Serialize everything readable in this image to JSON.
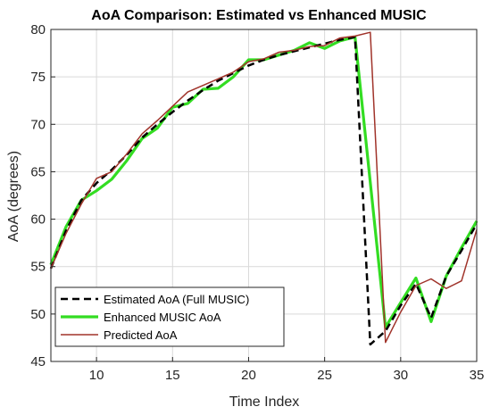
{
  "chart_data": {
    "type": "line",
    "title": "AoA Comparison: Estimated vs Enhanced MUSIC",
    "xlabel": "Time Index",
    "ylabel": "AoA (degrees)",
    "xlim": [
      7,
      35
    ],
    "ylim": [
      45,
      80
    ],
    "xticks": [
      10,
      15,
      20,
      25,
      30,
      35
    ],
    "yticks": [
      45,
      50,
      55,
      60,
      65,
      70,
      75,
      80
    ],
    "grid": true,
    "legend_position": "bottom-left",
    "series": [
      {
        "name": "Estimated AoA (Full MUSIC)",
        "color": "#000000",
        "style": "dashed",
        "x": [
          7,
          8,
          9,
          10,
          11,
          12,
          13,
          14,
          15,
          16,
          17,
          18,
          19,
          20,
          21,
          22,
          23,
          24,
          25,
          26,
          27,
          28,
          29,
          30,
          31,
          32,
          33,
          34,
          35
        ],
        "y": [
          54.8,
          58.8,
          62.0,
          63.8,
          65.2,
          66.8,
          68.6,
          70.0,
          71.3,
          72.5,
          73.6,
          74.6,
          75.4,
          76.2,
          76.8,
          77.3,
          77.7,
          78.1,
          78.5,
          78.9,
          79.2,
          46.8,
          48.2,
          50.9,
          53.2,
          49.6,
          54.0,
          56.7,
          59.5
        ]
      },
      {
        "name": "Enhanced MUSIC AoA",
        "color": "#33dd22",
        "style": "solid",
        "x": [
          7,
          8,
          9,
          10,
          11,
          12,
          13,
          14,
          15,
          16,
          17,
          18,
          19,
          20,
          21,
          22,
          23,
          24,
          25,
          26,
          27,
          29,
          30,
          31,
          32,
          33,
          34,
          35
        ],
        "y": [
          55.2,
          59.2,
          62.0,
          63.0,
          64.2,
          66.2,
          68.5,
          69.6,
          71.8,
          72.2,
          73.7,
          73.8,
          75.0,
          76.8,
          76.8,
          77.3,
          77.8,
          78.6,
          78.0,
          78.8,
          79.2,
          48.6,
          51.2,
          53.8,
          49.2,
          54.0,
          57.0,
          59.8
        ]
      },
      {
        "name": "Predicted AoA",
        "color": "#a0332a",
        "style": "solid",
        "x": [
          7,
          8,
          9,
          10,
          11,
          12,
          13,
          14,
          15,
          16,
          17,
          18,
          19,
          20,
          21,
          22,
          23,
          24,
          25,
          26,
          27,
          28,
          29,
          30,
          31,
          32,
          33,
          34,
          35
        ],
        "y": [
          54.8,
          58.5,
          61.6,
          64.3,
          65.0,
          66.9,
          69.0,
          70.4,
          71.9,
          73.4,
          74.1,
          74.8,
          75.5,
          76.6,
          76.9,
          77.6,
          77.8,
          78.2,
          78.3,
          79.1,
          79.3,
          79.7,
          47.0,
          50.2,
          53.0,
          53.7,
          52.7,
          53.5,
          58.9
        ]
      }
    ]
  }
}
